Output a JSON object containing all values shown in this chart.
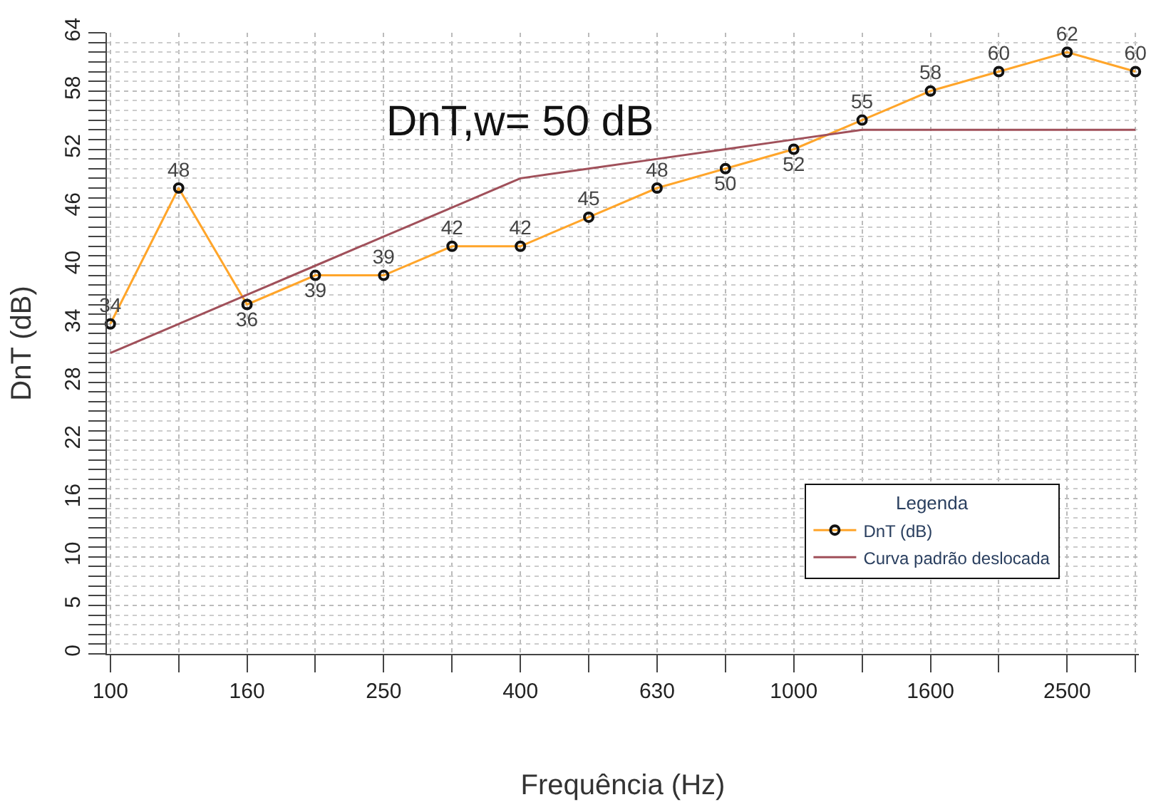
{
  "chart_data": {
    "type": "line",
    "xlabel": "Frequência (Hz)",
    "ylabel": "DnT (dB)",
    "legend_title": "Legenda",
    "annotations": [
      "DnT,w= 50 dB"
    ],
    "categories": [
      "100",
      null,
      "160",
      null,
      "250",
      null,
      "400",
      null,
      "630",
      null,
      "1000",
      null,
      "1600",
      null,
      "2500",
      null
    ],
    "series": [
      {
        "name": "DnT (dB)",
        "color": "#ffa52a",
        "marker": "circle",
        "data_labels": true,
        "values": [
          34,
          48,
          36,
          39,
          39,
          42,
          42,
          45,
          48,
          50,
          52,
          55,
          58,
          60,
          62,
          60
        ]
      },
      {
        "name": "Curva padrão deslocada",
        "color": "#a0505a",
        "marker": "none",
        "values": [
          31,
          34,
          37,
          40,
          43,
          46,
          49,
          50,
          51,
          52,
          53,
          54,
          54,
          54,
          54,
          54
        ]
      }
    ],
    "ylim": [
      0,
      64
    ],
    "yticks": [
      0,
      5,
      10,
      16,
      22,
      28,
      34,
      40,
      46,
      52,
      58,
      64
    ],
    "grid": true,
    "legend": "bottom right"
  }
}
